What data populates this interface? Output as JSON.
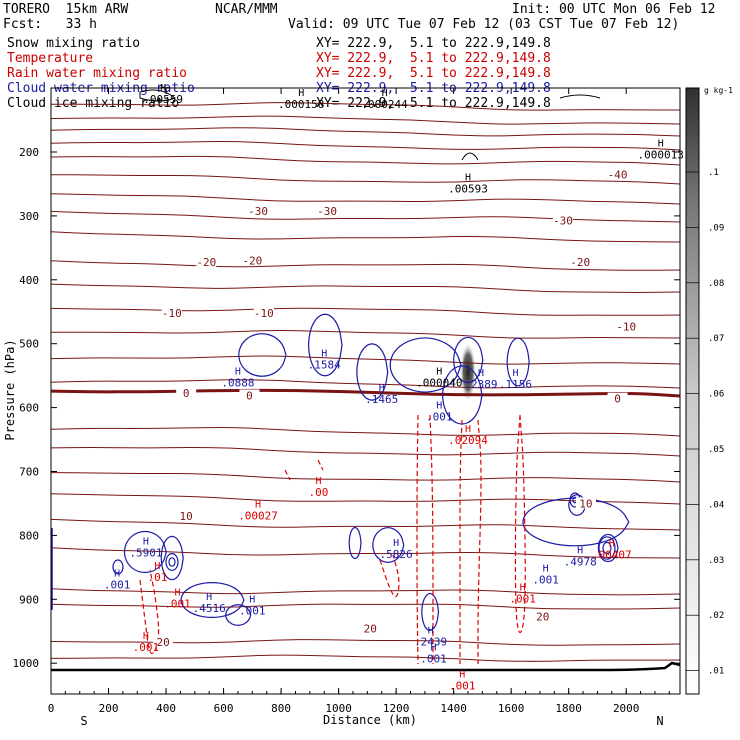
{
  "header": {
    "model": "TORERO  15km ARW",
    "center": "NCAR/MMM",
    "init": "Init: 00 UTC Mon 06 Feb 12",
    "fcst": "Fcst:   33 h",
    "valid": "Valid: 09 UTC Tue 07 Feb 12 (03 CST Tue 07 Feb 12)"
  },
  "fields": [
    {
      "name": "Snow mixing ratio",
      "color": "#000000",
      "xy": "XY= 222.9,  5.1 to 222.9,149.8"
    },
    {
      "name": "Temperature",
      "color": "#cc0000",
      "xy": "XY= 222.9,  5.1 to 222.9,149.8"
    },
    {
      "name": "Rain water mixing ratio",
      "color": "#cc0000",
      "xy": "XY= 222.9,  5.1 to 222.9,149.8"
    },
    {
      "name": "Cloud water mixing ratio",
      "color": "#1a1aa6",
      "xy": "XY= 222.9,  5.1 to 222.9,149.8"
    },
    {
      "name": "Cloud ice mixing ratio",
      "color": "#000000",
      "xy": "XY= 222.9,  5.1 to 222.9,149.8"
    }
  ],
  "colors": {
    "temperature": "#7a1414",
    "rain": "#dd0000",
    "cloud_water": "#1a1aa6",
    "snow": "#000000",
    "terrain": "#000000"
  },
  "chart_data": {
    "type": "cross-section contour",
    "xlabel": "Distance (km)",
    "ylabel": "Pressure (hPa)",
    "x_ticks": [
      0,
      200,
      400,
      600,
      800,
      1000,
      1200,
      1400,
      1600,
      1800,
      2000
    ],
    "y_ticks": [
      200,
      300,
      400,
      500,
      600,
      700,
      800,
      900,
      1000
    ],
    "xlim": [
      0,
      2180
    ],
    "ylim": [
      1050,
      100
    ],
    "x_endpoints": [
      "S",
      "N"
    ],
    "temperature_contours": {
      "interval": 5,
      "labels": [
        {
          "value": "-40",
          "x": 1970,
          "p": 235
        },
        {
          "value": "-30",
          "x": 720,
          "p": 292
        },
        {
          "value": "-30",
          "x": 960,
          "p": 292
        },
        {
          "value": "-30",
          "x": 1780,
          "p": 307
        },
        {
          "value": "-20",
          "x": 540,
          "p": 372
        },
        {
          "value": "-20",
          "x": 700,
          "p": 370
        },
        {
          "value": "-20",
          "x": 1840,
          "p": 372
        },
        {
          "value": "-10",
          "x": 420,
          "p": 452
        },
        {
          "value": "-10",
          "x": 740,
          "p": 452
        },
        {
          "value": "-10",
          "x": 2000,
          "p": 473
        },
        {
          "value": "0",
          "x": 470,
          "p": 577
        },
        {
          "value": "0",
          "x": 690,
          "p": 581
        },
        {
          "value": "0",
          "x": 1970,
          "p": 586
        },
        {
          "value": "10",
          "x": 470,
          "p": 770
        },
        {
          "value": "10",
          "x": 1860,
          "p": 750
        },
        {
          "value": "20",
          "x": 390,
          "p": 967
        },
        {
          "value": "20",
          "x": 1110,
          "p": 946
        },
        {
          "value": "20",
          "x": 1710,
          "p": 927
        }
      ]
    },
    "snow_maxima": [
      {
        "label": ".00559",
        "x": 390,
        "p": 120
      },
      {
        "label": ".000158",
        "x": 870,
        "p": 128
      },
      {
        "label": ".000244",
        "x": 1160,
        "p": 128
      },
      {
        "label": ".000013",
        "x": 2120,
        "p": 207
      },
      {
        "label": ".00593",
        "x": 1450,
        "p": 260
      }
    ],
    "cloud_water_maxima": [
      {
        "label": ".0888",
        "x": 650,
        "p": 564
      },
      {
        "label": ".1584",
        "x": 950,
        "p": 536
      },
      {
        "label": ".1465",
        "x": 1150,
        "p": 590
      },
      {
        "label": ".2389",
        "x": 1495,
        "p": 566
      },
      {
        "label": ".1156",
        "x": 1615,
        "p": 566
      },
      {
        "label": ".001",
        "x": 1350,
        "p": 617
      },
      {
        "label": ".5901",
        "x": 330,
        "p": 830
      },
      {
        "label": ".001",
        "x": 230,
        "p": 880
      },
      {
        "label": ".4516",
        "x": 550,
        "p": 917
      },
      {
        "label": ".001",
        "x": 700,
        "p": 921
      },
      {
        "label": ".5826",
        "x": 1200,
        "p": 832
      },
      {
        "label": ".4978",
        "x": 1840,
        "p": 844
      },
      {
        "label": ".001",
        "x": 1720,
        "p": 872
      },
      {
        "label": ".2439",
        "x": 1320,
        "p": 969
      },
      {
        "label": ".001",
        "x": 1330,
        "p": 996
      }
    ],
    "rain_maxima": [
      {
        "label": ".00",
        "x": 930,
        "p": 735
      },
      {
        "label": ".00027",
        "x": 720,
        "p": 772
      },
      {
        "label": ".02094",
        "x": 1450,
        "p": 654
      },
      {
        "label": ".01",
        "x": 370,
        "p": 868
      },
      {
        "label": ".001",
        "x": 440,
        "p": 910
      },
      {
        "label": ".001",
        "x": 330,
        "p": 978
      },
      {
        "label": ".001",
        "x": 1640,
        "p": 902
      },
      {
        "label": ".00407",
        "x": 1950,
        "p": 833
      },
      {
        "label": ".001",
        "x": 1430,
        "p": 1038
      }
    ],
    "other_maxima_labels": [
      {
        "label": ".000040",
        "x": 1350,
        "p": 564
      }
    ],
    "colorbar": {
      "unit": "g kg-1",
      "ticks": [
        ".1",
        ".09",
        ".08",
        ".07",
        ".06",
        ".05",
        ".04",
        ".03",
        ".02",
        ".01"
      ]
    }
  }
}
